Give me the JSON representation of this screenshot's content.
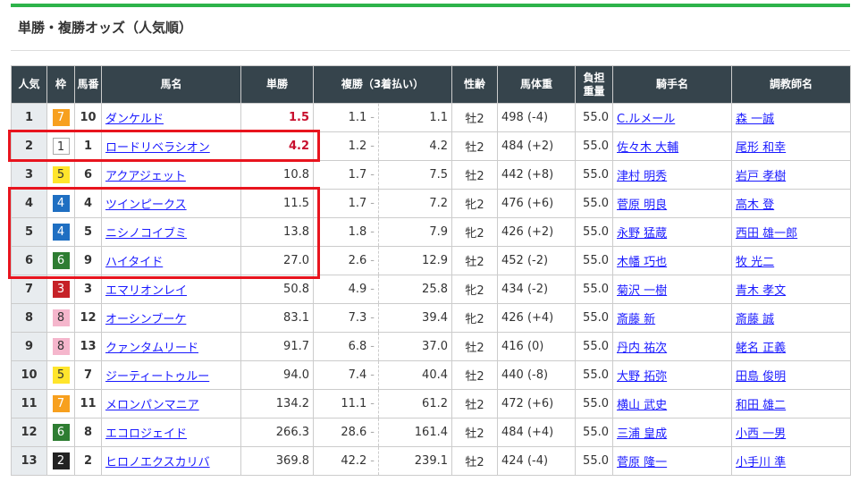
{
  "title": "単勝・複勝オッズ（人気順）",
  "headers": {
    "popularity": "人気",
    "waku": "枠",
    "number": "馬番",
    "name": "馬名",
    "win": "単勝",
    "place": "複勝（3着払い）",
    "sexage": "性齢",
    "weight": "馬体重",
    "burden": "負担重量",
    "jockey": "騎手名",
    "trainer": "調教師名"
  },
  "waku_colors": {
    "1": "#ffffff",
    "2": "#222222",
    "3": "#c62127",
    "4": "#1f6fc2",
    "5": "#ffe52c",
    "6": "#2e7d32",
    "7": "#f7a01f",
    "8": "#f5b6cc"
  },
  "highlight_color": "#e8141e",
  "rows": [
    {
      "pop": "1",
      "waku": "7",
      "num": "10",
      "name": "ダンケルド",
      "win": "1.5",
      "pmin": "1.1",
      "pmax": "1.1",
      "sex": "牡2",
      "weight": "498 (-4)",
      "burden": "55.0",
      "jockey": "C.ルメール",
      "trainer": "森 一誠"
    },
    {
      "pop": "2",
      "waku": "1",
      "num": "1",
      "name": "ロードリベラシオン",
      "win": "4.2",
      "pmin": "1.2",
      "pmax": "4.2",
      "sex": "牡2",
      "weight": "484 (+2)",
      "burden": "55.0",
      "jockey": "佐々木 大輔",
      "trainer": "尾形 和幸"
    },
    {
      "pop": "3",
      "waku": "5",
      "num": "6",
      "name": "アクアジェット",
      "win": "10.8",
      "pmin": "1.7",
      "pmax": "7.5",
      "sex": "牡2",
      "weight": "442 (+8)",
      "burden": "55.0",
      "jockey": "津村 明秀",
      "trainer": "岩戸 孝樹"
    },
    {
      "pop": "4",
      "waku": "4",
      "num": "4",
      "name": "ツインピークス",
      "win": "11.5",
      "pmin": "1.7",
      "pmax": "7.2",
      "sex": "牝2",
      "weight": "476 (+6)",
      "burden": "55.0",
      "jockey": "菅原 明良",
      "trainer": "高木 登"
    },
    {
      "pop": "5",
      "waku": "4",
      "num": "5",
      "name": "ニシノコイブミ",
      "win": "13.8",
      "pmin": "1.8",
      "pmax": "7.9",
      "sex": "牝2",
      "weight": "426 (+2)",
      "burden": "55.0",
      "jockey": "永野 猛蔵",
      "trainer": "西田 雄一郎"
    },
    {
      "pop": "6",
      "waku": "6",
      "num": "9",
      "name": "ハイタイド",
      "win": "27.0",
      "pmin": "2.6",
      "pmax": "12.9",
      "sex": "牡2",
      "weight": "452 (-2)",
      "burden": "55.0",
      "jockey": "木幡 巧也",
      "trainer": "牧 光二"
    },
    {
      "pop": "7",
      "waku": "3",
      "num": "3",
      "name": "エマリオンレイ",
      "win": "50.8",
      "pmin": "4.9",
      "pmax": "25.8",
      "sex": "牝2",
      "weight": "434 (-2)",
      "burden": "55.0",
      "jockey": "菊沢 一樹",
      "trainer": "青木 孝文"
    },
    {
      "pop": "8",
      "waku": "8",
      "num": "12",
      "name": "オーシンブーケ",
      "win": "83.1",
      "pmin": "7.3",
      "pmax": "39.4",
      "sex": "牝2",
      "weight": "426 (+4)",
      "burden": "55.0",
      "jockey": "斎藤 新",
      "trainer": "斎藤 誠"
    },
    {
      "pop": "9",
      "waku": "8",
      "num": "13",
      "name": "クァンタムリード",
      "win": "91.7",
      "pmin": "6.8",
      "pmax": "37.0",
      "sex": "牡2",
      "weight": "416 (0)",
      "burden": "55.0",
      "jockey": "丹内 祐次",
      "trainer": "蛯名 正義"
    },
    {
      "pop": "10",
      "waku": "5",
      "num": "7",
      "name": "ジーティートゥルー",
      "win": "94.0",
      "pmin": "7.4",
      "pmax": "40.4",
      "sex": "牡2",
      "weight": "440 (-8)",
      "burden": "55.0",
      "jockey": "大野 拓弥",
      "trainer": "田島 俊明"
    },
    {
      "pop": "11",
      "waku": "7",
      "num": "11",
      "name": "メロンパンマニア",
      "win": "134.2",
      "pmin": "11.1",
      "pmax": "61.2",
      "sex": "牡2",
      "weight": "472 (+6)",
      "burden": "55.0",
      "jockey": "横山 武史",
      "trainer": "和田 雄二"
    },
    {
      "pop": "12",
      "waku": "6",
      "num": "8",
      "name": "エコロジェイド",
      "win": "266.3",
      "pmin": "28.6",
      "pmax": "161.4",
      "sex": "牡2",
      "weight": "484 (+4)",
      "burden": "55.0",
      "jockey": "三浦 皇成",
      "trainer": "小西 一男"
    },
    {
      "pop": "13",
      "waku": "2",
      "num": "2",
      "name": "ヒロノエクスカリバ",
      "win": "369.8",
      "pmin": "42.2",
      "pmax": "239.1",
      "sex": "牡2",
      "weight": "424 (-4)",
      "burden": "55.0",
      "jockey": "菅原 隆一",
      "trainer": "小手川 準"
    }
  ]
}
